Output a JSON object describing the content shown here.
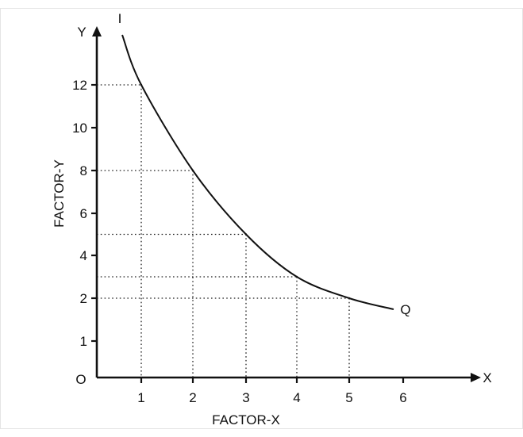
{
  "chart_data": {
    "type": "line",
    "xlabel": "FACTOR-X",
    "ylabel": "FACTOR-Y",
    "x_axis_letter": "X",
    "y_axis_letter": "Y",
    "origin_label": "O",
    "curve_start_label": "I",
    "curve_end_label": "Q",
    "x_ticks": [
      "1",
      "2",
      "3",
      "4",
      "5",
      "6"
    ],
    "y_ticks": [
      "1",
      "2",
      "4",
      "6",
      "8",
      "10",
      "12"
    ],
    "series": [
      {
        "points": [
          {
            "x": 1,
            "y": 12
          },
          {
            "x": 2,
            "y": 8
          },
          {
            "x": 3,
            "y": 5
          },
          {
            "x": 4,
            "y": 3
          },
          {
            "x": 5,
            "y": 2
          }
        ]
      }
    ],
    "grid": false,
    "guide_lines": "dotted"
  }
}
